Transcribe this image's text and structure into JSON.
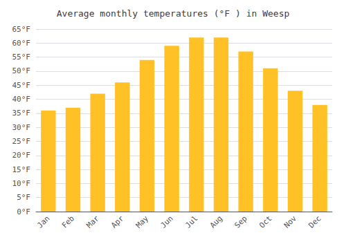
{
  "chart_data": {
    "type": "bar",
    "title": "Average monthly temperatures (°F ) in Weesp",
    "categories": [
      "Jan",
      "Feb",
      "Mar",
      "Apr",
      "May",
      "Jun",
      "Jul",
      "Aug",
      "Sep",
      "Oct",
      "Nov",
      "Dec"
    ],
    "values": [
      36,
      37,
      42,
      46,
      54,
      59,
      62,
      62,
      57,
      51,
      43,
      38
    ],
    "color": "#FFC125",
    "ylim": [
      0,
      65
    ],
    "yticks": [
      {
        "value": 0,
        "label": "0°F"
      },
      {
        "value": 5,
        "label": "5°F"
      },
      {
        "value": 10,
        "label": "10°F"
      },
      {
        "value": 15,
        "label": "15°F"
      },
      {
        "value": 20,
        "label": "20°F"
      },
      {
        "value": 25,
        "label": "25°F"
      },
      {
        "value": 30,
        "label": "30°F"
      },
      {
        "value": 35,
        "label": "35°F"
      },
      {
        "value": 40,
        "label": "40°F"
      },
      {
        "value": 45,
        "label": "45°F"
      },
      {
        "value": 50,
        "label": "50°F"
      },
      {
        "value": 55,
        "label": "55°F"
      },
      {
        "value": 60,
        "label": "60°F"
      },
      {
        "value": 65,
        "label": "65°F"
      }
    ],
    "grid": true
  }
}
